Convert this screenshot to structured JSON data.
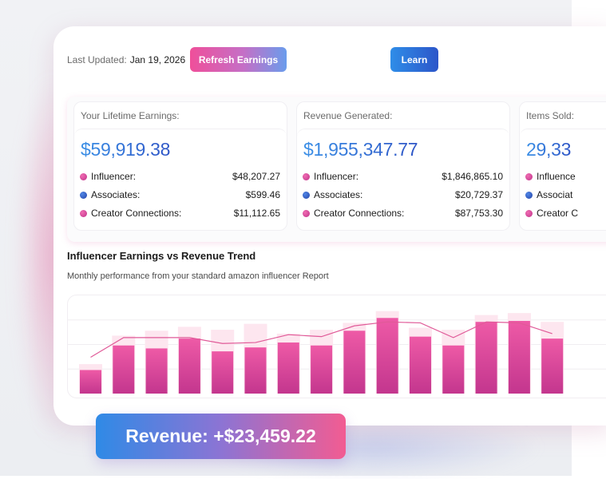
{
  "header": {
    "last_updated_label": "Last Updated:",
    "last_updated_date": "Jan 19, 2026",
    "refresh_label": "Refresh Earnings",
    "learn_label": "Learn"
  },
  "stats": [
    {
      "title": "Your Lifetime Earnings:",
      "value": "$59,919.38",
      "rows": [
        {
          "label": "Influencer:",
          "amount": "$48,207.27",
          "dot": "pink"
        },
        {
          "label": "Associates:",
          "amount": "$599.46",
          "dot": "blue"
        },
        {
          "label": "Creator Connections:",
          "amount": "$11,112.65",
          "dot": "pink"
        }
      ]
    },
    {
      "title": "Revenue Generated:",
      "value": "$1,955,347.77",
      "rows": [
        {
          "label": "Influencer:",
          "amount": "$1,846,865.10",
          "dot": "pink"
        },
        {
          "label": "Associates:",
          "amount": "$20,729.37",
          "dot": "blue"
        },
        {
          "label": "Creator Connections:",
          "amount": "$87,753.30",
          "dot": "pink"
        }
      ]
    },
    {
      "title": "Items Sold:",
      "value": "29,33",
      "rows": [
        {
          "label": "Influence",
          "amount": "",
          "dot": "pink"
        },
        {
          "label": "Associat",
          "amount": "",
          "dot": "blue"
        },
        {
          "label": "Creator C",
          "amount": "",
          "dot": "pink"
        }
      ]
    }
  ],
  "chart_section": {
    "title": "Influencer Earnings vs Revenue Trend",
    "subtitle": "Monthly performance from your standard amazon influencer Report"
  },
  "chart_data": {
    "type": "bar",
    "ylim": [
      0,
      100
    ],
    "grid": true,
    "series": [
      {
        "values": [
          24,
          49,
          46,
          56,
          43,
          47,
          52,
          49,
          64,
          77,
          58,
          49,
          73,
          74,
          56
        ]
      },
      {
        "values": [
          30,
          59,
          64,
          68,
          65,
          71,
          61,
          65,
          72,
          84,
          67,
          65,
          80,
          82,
          73
        ]
      },
      {
        "values": [
          37,
          57,
          57,
          57,
          51,
          52,
          60,
          58,
          69,
          73,
          72,
          57,
          73,
          72,
          61
        ]
      }
    ],
    "colors": {
      "bar": "#d94a9c",
      "backdrop": "#fde6ef",
      "line": "#e05a98"
    }
  },
  "revenue_badge": {
    "text": "Revenue: +$23,459.22"
  }
}
